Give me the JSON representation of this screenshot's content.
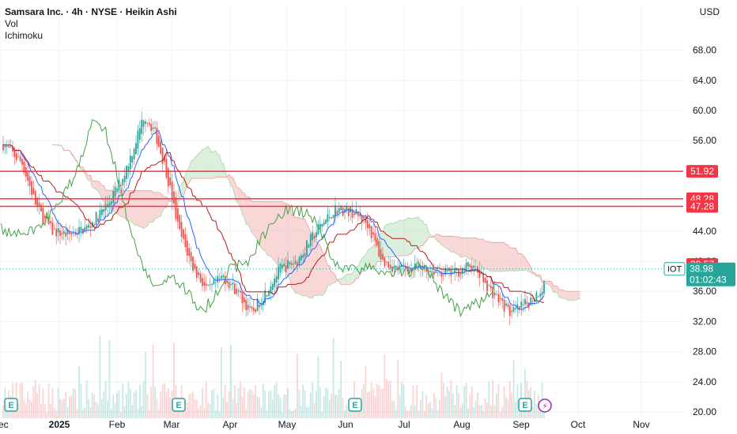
{
  "header": {
    "title": "Samsara Inc. · 4h · NYSE · Heikin Ashi",
    "indicator_1": "Vol",
    "indicator_2": "Ichimoku"
  },
  "currency": "USD",
  "colors": {
    "up": "#26a69a",
    "down": "#ef5350",
    "level_line": "#f23645",
    "conversion_line": "#2962ff",
    "base_line": "#b71c1c",
    "lagging_span": "#43a047",
    "cloud_bull": "#a5d6a7",
    "cloud_bear": "#ef9a9a",
    "grid": "#f0f3fa",
    "text": "#131722"
  },
  "chart_data": {
    "type": "candlestick",
    "symbol": "IOT",
    "last_price": "38.98",
    "countdown": "01:02:43",
    "y_axis": {
      "ticks": [
        "68.00",
        "64.00",
        "60.00",
        "56.00",
        "52.00",
        "48.00",
        "44.00",
        "40.00",
        "36.00",
        "32.00",
        "28.00",
        "24.00",
        "20.00"
      ],
      "range": [
        20,
        71
      ]
    },
    "x_axis": {
      "ticks": [
        "Dec",
        "2025",
        "Feb",
        "Mar",
        "Apr",
        "May",
        "Jun",
        "Jul",
        "Aug",
        "Sep",
        "Oct",
        "Nov"
      ]
    },
    "horizontal_levels": [
      51.92,
      48.28,
      47.28
    ],
    "price_labels": [
      {
        "value": "51.92",
        "price": 51.92,
        "color": "#f23645"
      },
      {
        "value": "48.28",
        "price": 48.28,
        "color": "#f23645"
      },
      {
        "value": "47.28",
        "price": 47.28,
        "color": "#f23645"
      },
      {
        "value": "39.57",
        "price": 39.57,
        "color": "#f23645"
      }
    ],
    "price_path": [
      [
        "Dec",
        55.5
      ],
      [
        "Dec",
        53
      ],
      [
        "Dec",
        47
      ],
      [
        "Dec",
        44
      ],
      [
        "2025",
        43.5
      ],
      [
        "2025",
        44.5
      ],
      [
        "2025",
        47.5
      ],
      [
        "Feb",
        51
      ],
      [
        "Feb",
        55
      ],
      [
        "Feb",
        59.5
      ],
      [
        "Feb",
        57
      ],
      [
        "Feb",
        52
      ],
      [
        "Mar",
        44
      ],
      [
        "Mar",
        39
      ],
      [
        "Mar",
        36
      ],
      [
        "Mar",
        38
      ],
      [
        "Apr",
        36
      ],
      [
        "Apr",
        33
      ],
      [
        "Apr",
        36
      ],
      [
        "Apr",
        39
      ],
      [
        "May",
        40
      ],
      [
        "May",
        44
      ],
      [
        "May",
        47
      ],
      [
        "Jun",
        46.5
      ],
      [
        "Jun",
        45
      ],
      [
        "Jun",
        40
      ],
      [
        "Jun",
        39
      ],
      [
        "Jul",
        39
      ],
      [
        "Jul",
        38.8
      ],
      [
        "Jul",
        38.3
      ],
      [
        "Aug",
        39.5
      ],
      [
        "Aug",
        36
      ],
      [
        "Aug",
        33
      ],
      [
        "Sep",
        34.5
      ],
      [
        "Sep",
        36.5
      ],
      [
        "Sep",
        41
      ],
      [
        "Sep",
        39
      ]
    ],
    "event_markers": [
      {
        "label": "E",
        "x_tick": "Dec"
      },
      {
        "label": "E",
        "x_tick": "Mar"
      },
      {
        "label": "E",
        "x_tick": "Jun"
      },
      {
        "label": "E",
        "x_tick": "Sep"
      }
    ],
    "dividend_marker": {
      "label": "⚡"
    }
  }
}
